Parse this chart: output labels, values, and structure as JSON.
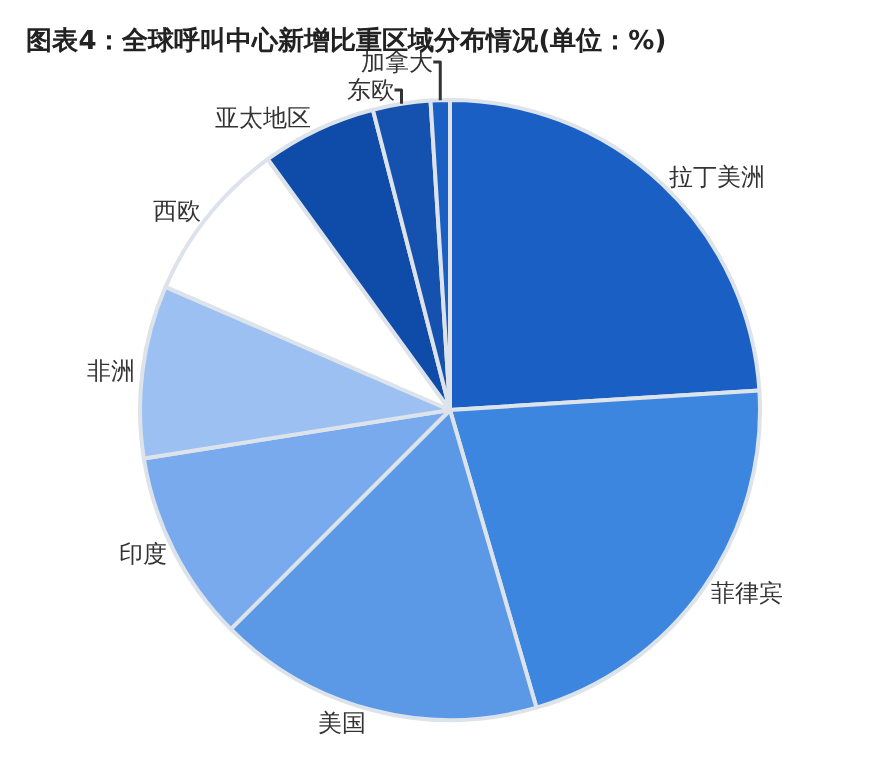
{
  "chart_data": {
    "type": "pie",
    "title": "图表4：全球呼叫中心新增比重区域分布情况(单位：%)",
    "categories": [
      "拉丁美洲",
      "菲律宾",
      "美国",
      "印度",
      "非洲",
      "西欧",
      "亚太地区",
      "东欧",
      "加拿大"
    ],
    "values": [
      24,
      21.5,
      17,
      10,
      9,
      8.5,
      6,
      3,
      1
    ],
    "colors": [
      "#1a5fc4",
      "#3d86e0",
      "#5b98e6",
      "#7aaaee",
      "#9cc0f2",
      "#ffffff",
      "#0f4ba8",
      "#1552b0",
      "#1a5fc4"
    ],
    "legend": false
  }
}
